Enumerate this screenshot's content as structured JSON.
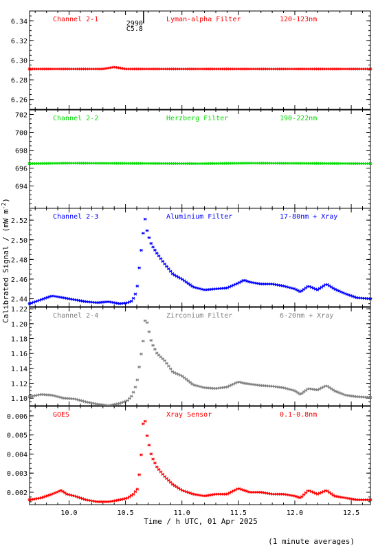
{
  "figure": {
    "xlabel": "Time / h UTC, 01 Apr 2025",
    "ylabel": "Calibrated Signal / (mW m",
    "ylabel_sup": "-2",
    "ylabel_close": ")",
    "footnote": "(1 minute averages)",
    "x_ticks": [
      "10.0",
      "10.5",
      "11.0",
      "11.5",
      "12.0",
      "12.5"
    ],
    "flare_marker": {
      "lines": [
        "2990",
        "C5.8"
      ],
      "x_hour": 10.66
    }
  },
  "colors": {
    "axes": "#000000",
    "red": "#ff0000",
    "green": "#00dd00",
    "blue": "#0000ff",
    "gray": "#808080"
  },
  "chart_data": [
    {
      "type": "scatter",
      "channel": "Channel 2-1",
      "filter": "Lyman-alpha Filter",
      "band": "120-123nm",
      "color": "#ff0000",
      "xlim": [
        9.65,
        12.67
      ],
      "ylim": [
        6.25,
        6.35
      ],
      "y_ticks": [
        "6.26",
        "6.28",
        "6.30",
        "6.32",
        "6.34"
      ],
      "x": [
        9.65,
        10.3,
        10.35,
        10.4,
        10.45,
        10.5,
        10.55,
        12.67
      ],
      "y": [
        6.291,
        6.291,
        6.292,
        6.293,
        6.292,
        6.291,
        6.291,
        6.291
      ]
    },
    {
      "type": "scatter",
      "channel": "Channel 2-2",
      "filter": "Herzberg Filter",
      "band": "190-222nm",
      "color": "#00dd00",
      "xlim": [
        9.65,
        12.67
      ],
      "ylim": [
        691.5,
        702.5
      ],
      "y_ticks": [
        "694",
        "696",
        "698",
        "700",
        "702"
      ],
      "x": [
        9.65,
        10.0,
        11.15,
        11.6,
        12.67
      ],
      "y": [
        696.5,
        696.55,
        696.5,
        696.55,
        696.5
      ]
    },
    {
      "type": "scatter",
      "channel": "Channel 2-3",
      "filter": "Aluminium Filter",
      "band": "17-80nm + Xray",
      "color": "#0000ff",
      "xlim": [
        9.65,
        12.67
      ],
      "ylim": [
        2.432,
        2.532
      ],
      "y_ticks": [
        "2.44",
        "2.46",
        "2.48",
        "2.50",
        "2.52"
      ],
      "x": [
        9.65,
        9.75,
        9.85,
        9.95,
        10.05,
        10.15,
        10.25,
        10.35,
        10.45,
        10.52,
        10.56,
        10.6,
        10.63,
        10.66,
        10.67,
        10.68,
        10.7,
        10.73,
        10.78,
        10.85,
        10.92,
        11.0,
        11.1,
        11.2,
        11.3,
        11.4,
        11.5,
        11.55,
        11.6,
        11.7,
        11.8,
        11.9,
        12.0,
        12.05,
        12.12,
        12.2,
        12.28,
        12.35,
        12.45,
        12.55,
        12.67
      ],
      "y": [
        2.435,
        2.439,
        2.443,
        2.441,
        2.439,
        2.437,
        2.436,
        2.437,
        2.435,
        2.436,
        2.438,
        2.448,
        2.48,
        2.51,
        2.525,
        2.515,
        2.505,
        2.495,
        2.486,
        2.475,
        2.465,
        2.46,
        2.452,
        2.449,
        2.45,
        2.451,
        2.456,
        2.459,
        2.457,
        2.455,
        2.455,
        2.453,
        2.45,
        2.447,
        2.453,
        2.449,
        2.455,
        2.45,
        2.445,
        2.441,
        2.44
      ]
    },
    {
      "type": "scatter",
      "channel": "Channel 2-4",
      "filter": "Zirconium Filter",
      "band": "6-20nm + Xray",
      "color": "#808080",
      "xlim": [
        9.65,
        12.67
      ],
      "ylim": [
        1.09,
        1.222
      ],
      "y_ticks": [
        "1.10",
        "1.12",
        "1.14",
        "1.16",
        "1.18",
        "1.20",
        "1.22"
      ],
      "x": [
        9.65,
        9.75,
        9.85,
        9.95,
        10.05,
        10.15,
        10.25,
        10.35,
        10.45,
        10.52,
        10.56,
        10.6,
        10.63,
        10.66,
        10.67,
        10.68,
        10.7,
        10.73,
        10.78,
        10.85,
        10.92,
        11.0,
        11.1,
        11.2,
        11.3,
        11.4,
        11.5,
        11.55,
        11.6,
        11.7,
        11.8,
        11.9,
        12.0,
        12.05,
        12.12,
        12.2,
        12.28,
        12.35,
        12.45,
        12.55,
        12.67
      ],
      "y": [
        1.102,
        1.105,
        1.104,
        1.1,
        1.099,
        1.095,
        1.092,
        1.09,
        1.093,
        1.097,
        1.104,
        1.12,
        1.15,
        1.18,
        1.2,
        1.21,
        1.195,
        1.175,
        1.16,
        1.15,
        1.135,
        1.13,
        1.118,
        1.114,
        1.113,
        1.115,
        1.122,
        1.12,
        1.119,
        1.117,
        1.116,
        1.114,
        1.11,
        1.105,
        1.113,
        1.111,
        1.117,
        1.11,
        1.104,
        1.102,
        1.101
      ]
    },
    {
      "type": "scatter",
      "channel": "GOES",
      "filter": "Xray Sensor",
      "band": "0.1-0.8nm",
      "color": "#ff0000",
      "xlim": [
        9.65,
        12.67
      ],
      "ylim": [
        0.00135,
        0.0065
      ],
      "y_ticks": [
        "0.002",
        "0.003",
        "0.004",
        "0.005",
        "0.006"
      ],
      "x": [
        9.65,
        9.75,
        9.85,
        9.93,
        9.98,
        10.05,
        10.15,
        10.25,
        10.35,
        10.45,
        10.52,
        10.57,
        10.61,
        10.64,
        10.66,
        10.67,
        10.68,
        10.7,
        10.73,
        10.78,
        10.85,
        10.92,
        11.0,
        11.1,
        11.2,
        11.3,
        11.4,
        11.5,
        11.55,
        11.6,
        11.7,
        11.8,
        11.9,
        12.0,
        12.05,
        12.12,
        12.2,
        12.28,
        12.35,
        12.45,
        12.55,
        12.67
      ],
      "y": [
        0.0016,
        0.0017,
        0.0019,
        0.0021,
        0.0019,
        0.0018,
        0.0016,
        0.0015,
        0.0015,
        0.0016,
        0.0017,
        0.0019,
        0.0022,
        0.004,
        0.0059,
        0.006,
        0.0053,
        0.0047,
        0.0039,
        0.0033,
        0.0028,
        0.0024,
        0.0021,
        0.0019,
        0.0018,
        0.0019,
        0.0019,
        0.0022,
        0.0021,
        0.002,
        0.002,
        0.0019,
        0.0019,
        0.0018,
        0.0017,
        0.0021,
        0.0019,
        0.0021,
        0.0018,
        0.0017,
        0.0016,
        0.0016
      ]
    }
  ]
}
